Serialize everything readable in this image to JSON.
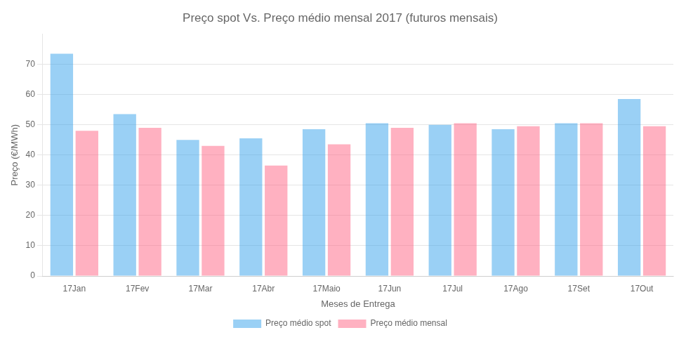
{
  "chart_data": {
    "type": "bar",
    "title": "Preço spot Vs. Preço médio mensal 2017 (futuros mensais)",
    "xlabel": "Meses de Entrega",
    "ylabel": "Preço (€/MWh)",
    "categories": [
      "17Jan",
      "17Fev",
      "17Mar",
      "17Abr",
      "17Maio",
      "17Jun",
      "17Jul",
      "17Ago",
      "17Set",
      "17Out"
    ],
    "series": [
      {
        "name": "Preço médio spot",
        "values": [
          73.5,
          53.5,
          45.0,
          45.5,
          48.5,
          50.5,
          50.0,
          48.5,
          50.5,
          58.5
        ]
      },
      {
        "name": "Preço médio mensal",
        "values": [
          48.0,
          49.0,
          43.0,
          36.5,
          43.5,
          49.0,
          50.5,
          49.5,
          50.5,
          49.5
        ]
      }
    ],
    "ylim": [
      0,
      80
    ],
    "yticks": [
      0,
      10,
      20,
      30,
      40,
      50,
      60,
      70
    ],
    "grid": true,
    "legend": "bottom"
  }
}
